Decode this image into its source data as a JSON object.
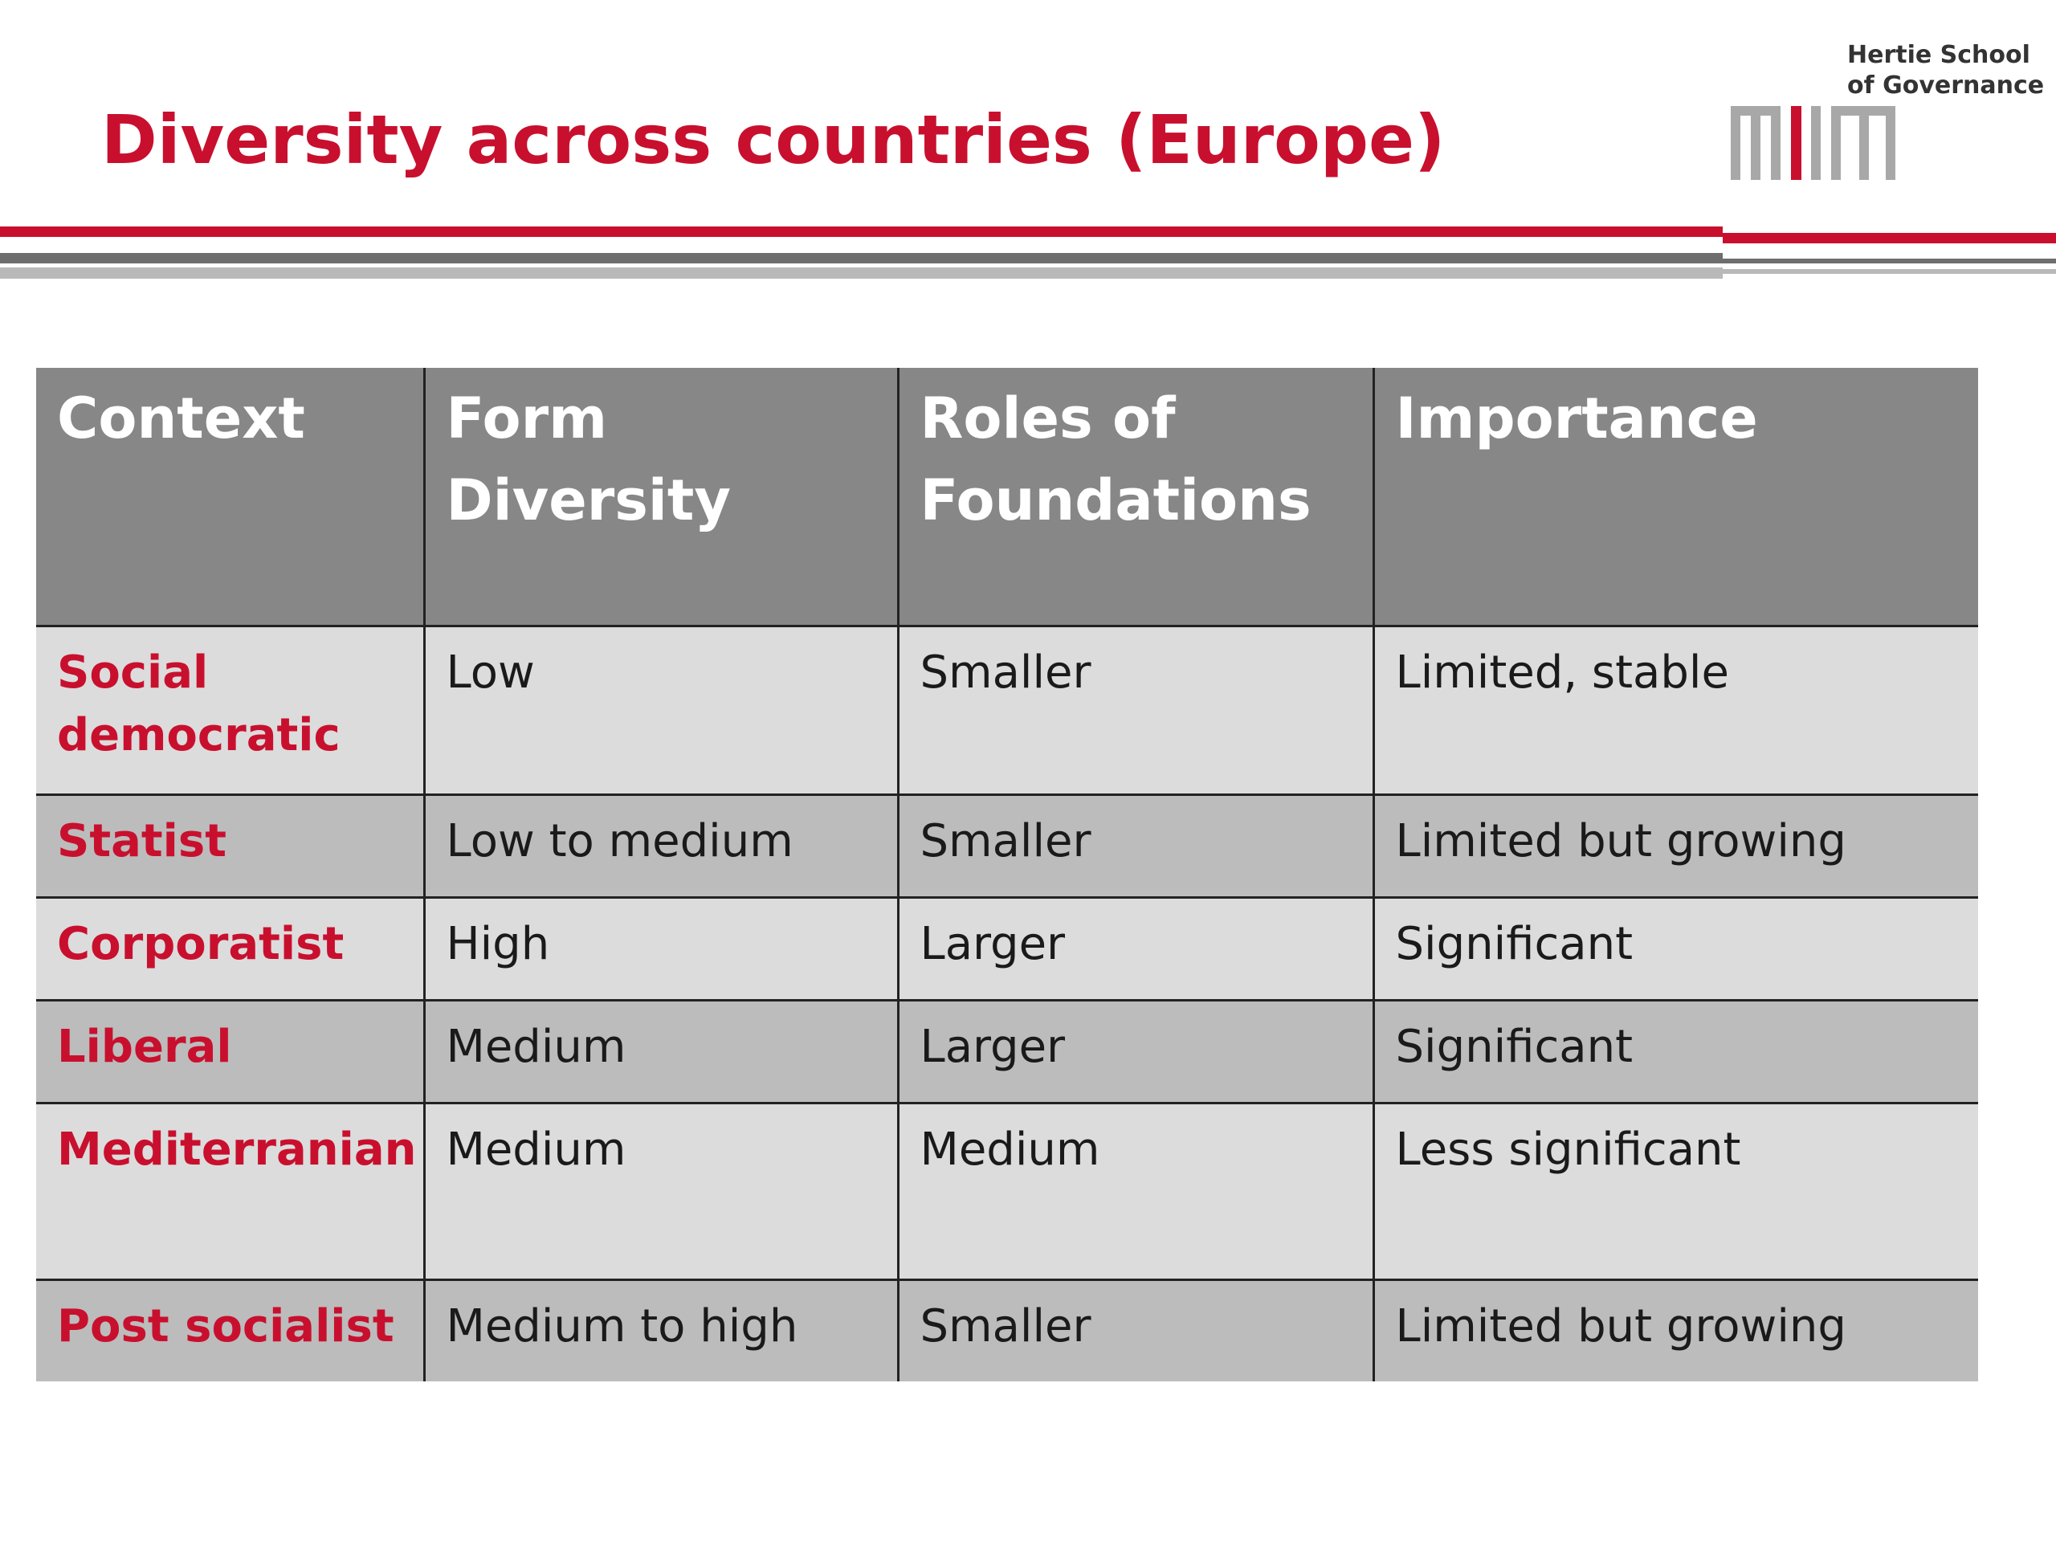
{
  "slide": {
    "title": "Diversity across countries (Europe)"
  },
  "logo": {
    "line1": "Hertie School",
    "line2": "of Governance"
  },
  "colors": {
    "accent": "#c8102e",
    "header_bg": "#878787",
    "row_light": "#dcdcdc",
    "row_dark": "#bcbcbc"
  },
  "table": {
    "headers": [
      "Context",
      "Form Diversity",
      "Roles of Foundations",
      "Importance"
    ],
    "rows": [
      [
        "Social democratic",
        "Low",
        "Smaller",
        "Limited, stable"
      ],
      [
        "Statist",
        "Low to medium",
        "Smaller",
        "Limited but growing"
      ],
      [
        "Corporatist",
        "High",
        "Larger",
        "Significant"
      ],
      [
        "Liberal",
        "Medium",
        "Larger",
        "Significant"
      ],
      [
        "Mediterranian",
        "Medium",
        "Medium",
        "Less significant"
      ],
      [
        "Post socialist",
        "Medium to high",
        "Smaller",
        "Limited but growing"
      ]
    ]
  }
}
